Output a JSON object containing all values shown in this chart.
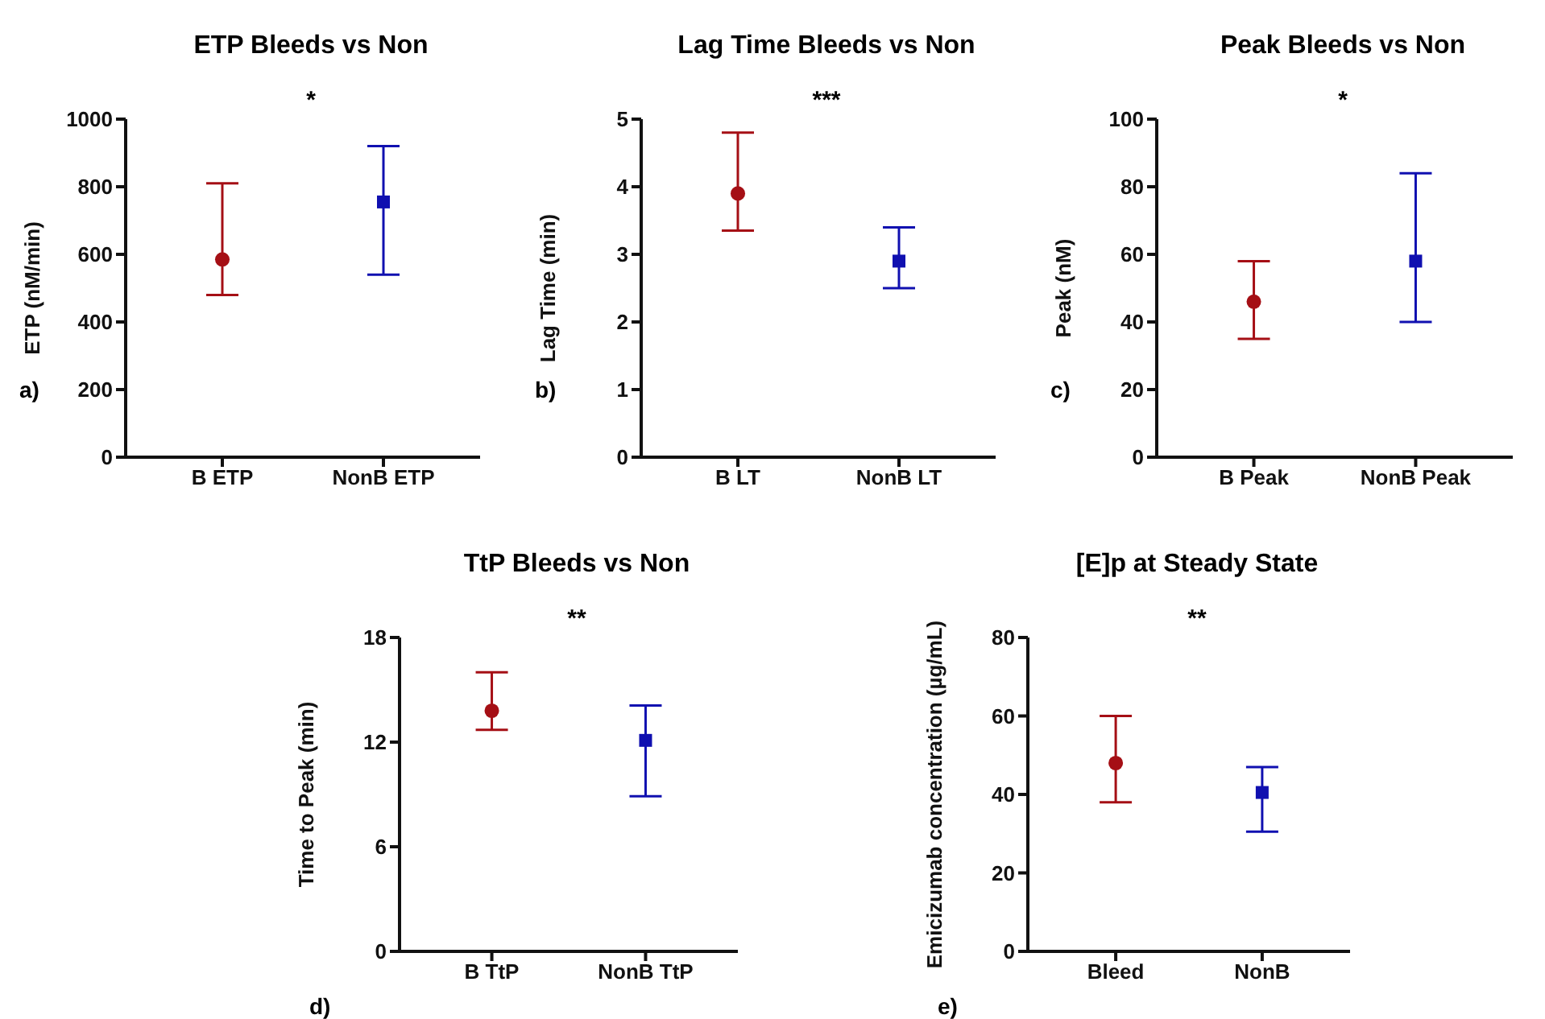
{
  "chart_data": [
    {
      "type": "scatter",
      "title": "ETP Bleeds vs Non",
      "ylabel": "ETP (nM/min)",
      "categories": [
        "B ETP",
        "NonB ETP"
      ],
      "ylim": [
        0,
        1000
      ],
      "yticks": [
        0,
        200,
        400,
        600,
        800,
        1000
      ],
      "grid": false,
      "annotations": [
        "*",
        "a)"
      ],
      "series": [
        {
          "color": "#a50f15",
          "marker": "circle",
          "values": [
            585,
            null
          ],
          "errors": [
            [
              480,
              810
            ],
            null
          ]
        },
        {
          "color": "#1010b0",
          "marker": "square",
          "values": [
            null,
            755
          ],
          "errors": [
            null,
            [
              540,
              920
            ]
          ]
        }
      ]
    },
    {
      "type": "scatter",
      "title": "Lag Time Bleeds vs Non",
      "ylabel": "Lag Time (min)",
      "categories": [
        "B LT",
        "NonB LT"
      ],
      "ylim": [
        0,
        5
      ],
      "yticks": [
        0,
        1,
        2,
        3,
        4,
        5
      ],
      "grid": false,
      "annotations": [
        "***",
        "b)"
      ],
      "series": [
        {
          "color": "#a50f15",
          "marker": "circle",
          "values": [
            3.9,
            null
          ],
          "errors": [
            [
              3.35,
              4.8
            ],
            null
          ]
        },
        {
          "color": "#1010b0",
          "marker": "square",
          "values": [
            null,
            2.9
          ],
          "errors": [
            null,
            [
              2.5,
              3.4
            ]
          ]
        }
      ]
    },
    {
      "type": "scatter",
      "title": "Peak Bleeds vs Non",
      "ylabel": "Peak (nM)",
      "categories": [
        "B Peak",
        "NonB Peak"
      ],
      "ylim": [
        0,
        100
      ],
      "yticks": [
        0,
        20,
        40,
        60,
        80,
        100
      ],
      "grid": false,
      "annotations": [
        "*",
        "c)"
      ],
      "series": [
        {
          "color": "#a50f15",
          "marker": "circle",
          "values": [
            46,
            null
          ],
          "errors": [
            [
              35,
              58
            ],
            null
          ]
        },
        {
          "color": "#1010b0",
          "marker": "square",
          "values": [
            null,
            58
          ],
          "errors": [
            null,
            [
              40,
              84
            ]
          ]
        }
      ]
    },
    {
      "type": "scatter",
      "title": "TtP Bleeds vs Non",
      "ylabel": "Time to Peak (min)",
      "categories": [
        "B TtP",
        "NonB TtP"
      ],
      "ylim": [
        0,
        18
      ],
      "yticks": [
        0,
        6,
        12,
        18
      ],
      "grid": false,
      "annotations": [
        "**",
        "d)"
      ],
      "series": [
        {
          "color": "#a50f15",
          "marker": "circle",
          "values": [
            13.8,
            null
          ],
          "errors": [
            [
              12.7,
              16
            ],
            null
          ]
        },
        {
          "color": "#1010b0",
          "marker": "square",
          "values": [
            null,
            12.1
          ],
          "errors": [
            null,
            [
              8.9,
              14.1
            ]
          ]
        }
      ]
    },
    {
      "type": "scatter",
      "title": "[E]p at Steady State",
      "ylabel": "Emicizumab concentration (µg/mL)",
      "categories": [
        "Bleed",
        "NonB"
      ],
      "ylim": [
        0,
        80
      ],
      "yticks": [
        0,
        20,
        40,
        60,
        80
      ],
      "grid": false,
      "annotations": [
        "**",
        "e)"
      ],
      "series": [
        {
          "color": "#a50f15",
          "marker": "circle",
          "values": [
            48,
            null
          ],
          "errors": [
            [
              38,
              60
            ],
            null
          ]
        },
        {
          "color": "#1010b0",
          "marker": "square",
          "values": [
            null,
            40.5
          ],
          "errors": [
            null,
            [
              30.5,
              47
            ]
          ]
        }
      ]
    }
  ]
}
